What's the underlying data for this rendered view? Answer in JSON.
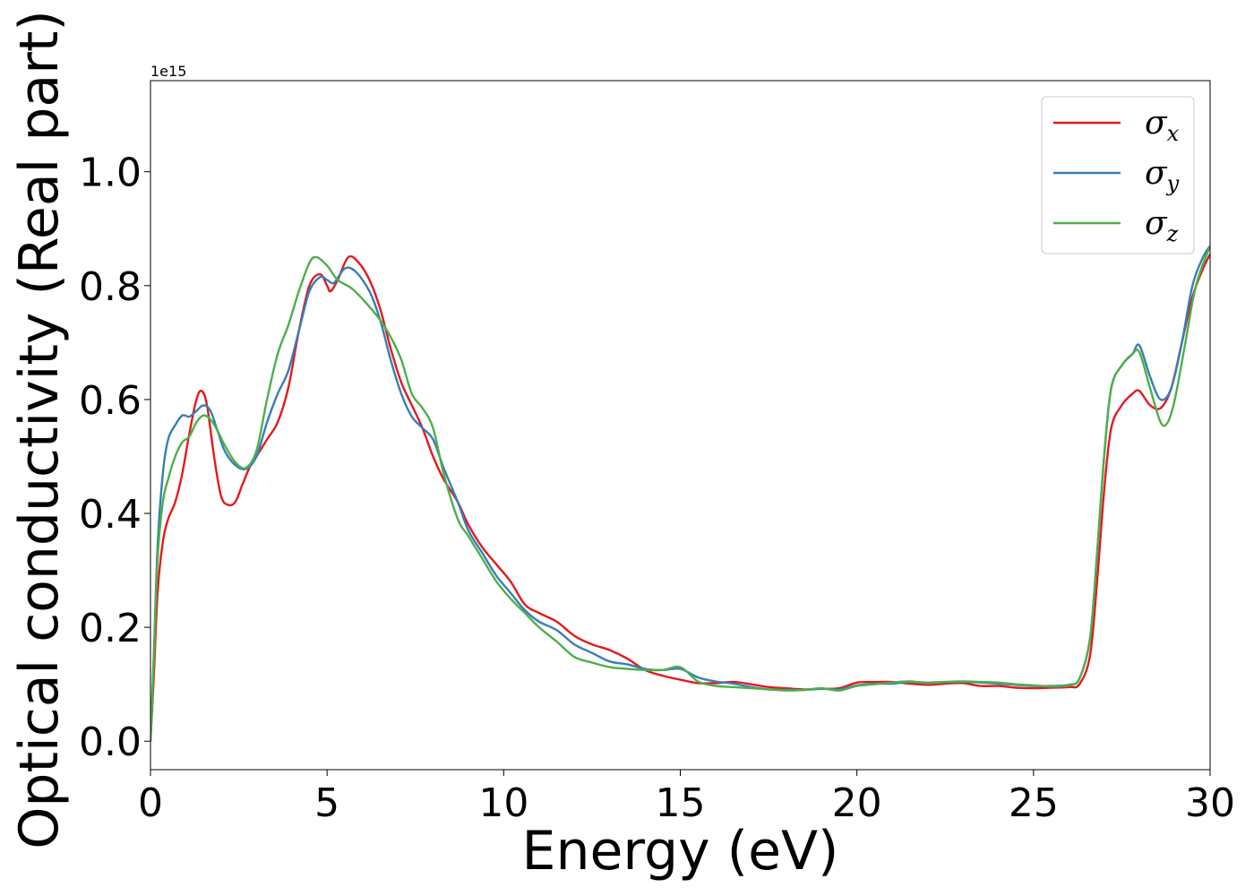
{
  "chart_data": {
    "type": "line",
    "title": "",
    "xlabel": "Energy (eV)",
    "ylabel": "Optical conductivity (Real part)",
    "y_offset_text": "1e15",
    "xlim": [
      0,
      30
    ],
    "ylim": [
      -0.05,
      1.16
    ],
    "y_scale_note": "values in units of 1e15",
    "xticks": [
      0,
      5,
      10,
      15,
      20,
      25,
      30
    ],
    "xtick_labels": [
      "0",
      "5",
      "10",
      "15",
      "20",
      "25",
      "30"
    ],
    "yticks": [
      0.0,
      0.2,
      0.4,
      0.6,
      0.8,
      1.0
    ],
    "ytick_labels": [
      "0.0",
      "0.2",
      "0.4",
      "0.6",
      "0.8",
      "1.0"
    ],
    "grid": false,
    "legend_position": "top-right",
    "series": [
      {
        "name": "σx",
        "legend_base": "σ",
        "legend_sub": "x",
        "color": "#e41a1c",
        "points": [
          [
            0,
            0.0
          ],
          [
            0.1,
            0.12
          ],
          [
            0.2,
            0.26
          ],
          [
            0.35,
            0.35
          ],
          [
            0.5,
            0.39
          ],
          [
            0.7,
            0.42
          ],
          [
            0.9,
            0.47
          ],
          [
            1.1,
            0.54
          ],
          [
            1.3,
            0.6
          ],
          [
            1.45,
            0.615
          ],
          [
            1.6,
            0.59
          ],
          [
            1.8,
            0.5
          ],
          [
            2.0,
            0.43
          ],
          [
            2.2,
            0.415
          ],
          [
            2.4,
            0.42
          ],
          [
            2.6,
            0.45
          ],
          [
            2.8,
            0.48
          ],
          [
            3.0,
            0.5
          ],
          [
            3.3,
            0.53
          ],
          [
            3.6,
            0.56
          ],
          [
            3.9,
            0.62
          ],
          [
            4.2,
            0.72
          ],
          [
            4.5,
            0.8
          ],
          [
            4.8,
            0.82
          ],
          [
            5.0,
            0.8
          ],
          [
            5.1,
            0.79
          ],
          [
            5.3,
            0.81
          ],
          [
            5.6,
            0.85
          ],
          [
            5.9,
            0.84
          ],
          [
            6.2,
            0.81
          ],
          [
            6.5,
            0.76
          ],
          [
            6.8,
            0.69
          ],
          [
            7.1,
            0.63
          ],
          [
            7.4,
            0.59
          ],
          [
            7.7,
            0.55
          ],
          [
            8.0,
            0.5
          ],
          [
            8.3,
            0.46
          ],
          [
            8.7,
            0.42
          ],
          [
            9.0,
            0.38
          ],
          [
            9.4,
            0.34
          ],
          [
            9.8,
            0.31
          ],
          [
            10.2,
            0.28
          ],
          [
            10.6,
            0.24
          ],
          [
            11.0,
            0.225
          ],
          [
            11.5,
            0.21
          ],
          [
            12.0,
            0.185
          ],
          [
            12.5,
            0.17
          ],
          [
            13.0,
            0.16
          ],
          [
            13.5,
            0.145
          ],
          [
            14.0,
            0.125
          ],
          [
            14.5,
            0.115
          ],
          [
            15.0,
            0.108
          ],
          [
            15.5,
            0.102
          ],
          [
            16.0,
            0.102
          ],
          [
            16.5,
            0.104
          ],
          [
            17.0,
            0.1
          ],
          [
            17.5,
            0.095
          ],
          [
            18.0,
            0.093
          ],
          [
            18.5,
            0.091
          ],
          [
            19.0,
            0.092
          ],
          [
            19.5,
            0.093
          ],
          [
            20.0,
            0.103
          ],
          [
            20.5,
            0.104
          ],
          [
            21.0,
            0.104
          ],
          [
            21.5,
            0.101
          ],
          [
            22.0,
            0.099
          ],
          [
            22.5,
            0.101
          ],
          [
            23.0,
            0.102
          ],
          [
            23.5,
            0.097
          ],
          [
            24.0,
            0.097
          ],
          [
            24.5,
            0.094
          ],
          [
            25.0,
            0.093
          ],
          [
            25.5,
            0.094
          ],
          [
            26.0,
            0.095
          ],
          [
            26.3,
            0.1
          ],
          [
            26.6,
            0.15
          ],
          [
            26.8,
            0.28
          ],
          [
            27.0,
            0.44
          ],
          [
            27.2,
            0.55
          ],
          [
            27.5,
            0.59
          ],
          [
            27.8,
            0.61
          ],
          [
            28.0,
            0.615
          ],
          [
            28.3,
            0.59
          ],
          [
            28.6,
            0.585
          ],
          [
            28.9,
            0.62
          ],
          [
            29.2,
            0.7
          ],
          [
            29.5,
            0.78
          ],
          [
            29.8,
            0.83
          ],
          [
            30.0,
            0.855
          ]
        ]
      },
      {
        "name": "σy",
        "legend_base": "σ",
        "legend_sub": "y",
        "color": "#377eb8",
        "points": [
          [
            0,
            0.0
          ],
          [
            0.1,
            0.16
          ],
          [
            0.2,
            0.34
          ],
          [
            0.35,
            0.47
          ],
          [
            0.5,
            0.53
          ],
          [
            0.7,
            0.555
          ],
          [
            0.9,
            0.572
          ],
          [
            1.1,
            0.57
          ],
          [
            1.3,
            0.58
          ],
          [
            1.5,
            0.59
          ],
          [
            1.7,
            0.58
          ],
          [
            1.9,
            0.545
          ],
          [
            2.1,
            0.51
          ],
          [
            2.4,
            0.485
          ],
          [
            2.7,
            0.478
          ],
          [
            3.0,
            0.5
          ],
          [
            3.3,
            0.56
          ],
          [
            3.6,
            0.61
          ],
          [
            3.9,
            0.65
          ],
          [
            4.2,
            0.72
          ],
          [
            4.5,
            0.79
          ],
          [
            4.8,
            0.815
          ],
          [
            5.0,
            0.81
          ],
          [
            5.2,
            0.805
          ],
          [
            5.5,
            0.83
          ],
          [
            5.8,
            0.825
          ],
          [
            6.2,
            0.79
          ],
          [
            6.5,
            0.74
          ],
          [
            6.8,
            0.67
          ],
          [
            7.1,
            0.61
          ],
          [
            7.4,
            0.57
          ],
          [
            7.7,
            0.55
          ],
          [
            8.0,
            0.53
          ],
          [
            8.3,
            0.48
          ],
          [
            8.7,
            0.42
          ],
          [
            9.0,
            0.37
          ],
          [
            9.4,
            0.33
          ],
          [
            9.8,
            0.29
          ],
          [
            10.2,
            0.26
          ],
          [
            10.6,
            0.23
          ],
          [
            11.0,
            0.21
          ],
          [
            11.5,
            0.195
          ],
          [
            12.0,
            0.17
          ],
          [
            12.5,
            0.155
          ],
          [
            13.0,
            0.14
          ],
          [
            13.5,
            0.135
          ],
          [
            14.0,
            0.127
          ],
          [
            14.5,
            0.125
          ],
          [
            15.0,
            0.127
          ],
          [
            15.5,
            0.112
          ],
          [
            16.0,
            0.105
          ],
          [
            16.5,
            0.101
          ],
          [
            17.0,
            0.095
          ],
          [
            17.5,
            0.091
          ],
          [
            18.0,
            0.09
          ],
          [
            18.5,
            0.09
          ],
          [
            19.0,
            0.092
          ],
          [
            19.5,
            0.091
          ],
          [
            20.0,
            0.098
          ],
          [
            20.5,
            0.101
          ],
          [
            21.0,
            0.101
          ],
          [
            21.5,
            0.104
          ],
          [
            22.0,
            0.103
          ],
          [
            22.5,
            0.104
          ],
          [
            23.0,
            0.104
          ],
          [
            23.5,
            0.103
          ],
          [
            24.0,
            0.101
          ],
          [
            24.5,
            0.099
          ],
          [
            25.0,
            0.097
          ],
          [
            25.5,
            0.097
          ],
          [
            26.0,
            0.099
          ],
          [
            26.3,
            0.11
          ],
          [
            26.6,
            0.18
          ],
          [
            26.8,
            0.33
          ],
          [
            27.0,
            0.5
          ],
          [
            27.2,
            0.62
          ],
          [
            27.5,
            0.66
          ],
          [
            27.8,
            0.68
          ],
          [
            28.0,
            0.695
          ],
          [
            28.3,
            0.64
          ],
          [
            28.6,
            0.6
          ],
          [
            28.9,
            0.62
          ],
          [
            29.2,
            0.7
          ],
          [
            29.5,
            0.8
          ],
          [
            29.8,
            0.85
          ],
          [
            30.0,
            0.87
          ]
        ]
      },
      {
        "name": "σz",
        "legend_base": "σ",
        "legend_sub": "z",
        "color": "#4daf4a",
        "points": [
          [
            0,
            0.0
          ],
          [
            0.1,
            0.15
          ],
          [
            0.2,
            0.32
          ],
          [
            0.35,
            0.42
          ],
          [
            0.5,
            0.46
          ],
          [
            0.7,
            0.5
          ],
          [
            0.9,
            0.525
          ],
          [
            1.1,
            0.535
          ],
          [
            1.3,
            0.56
          ],
          [
            1.5,
            0.572
          ],
          [
            1.7,
            0.565
          ],
          [
            1.9,
            0.545
          ],
          [
            2.1,
            0.52
          ],
          [
            2.4,
            0.49
          ],
          [
            2.7,
            0.48
          ],
          [
            3.0,
            0.51
          ],
          [
            3.3,
            0.6
          ],
          [
            3.6,
            0.68
          ],
          [
            3.9,
            0.73
          ],
          [
            4.2,
            0.79
          ],
          [
            4.5,
            0.84
          ],
          [
            4.7,
            0.85
          ],
          [
            5.0,
            0.835
          ],
          [
            5.3,
            0.81
          ],
          [
            5.7,
            0.795
          ],
          [
            6.1,
            0.77
          ],
          [
            6.5,
            0.74
          ],
          [
            6.8,
            0.71
          ],
          [
            7.1,
            0.67
          ],
          [
            7.4,
            0.61
          ],
          [
            7.7,
            0.585
          ],
          [
            8.0,
            0.55
          ],
          [
            8.3,
            0.47
          ],
          [
            8.7,
            0.39
          ],
          [
            9.0,
            0.36
          ],
          [
            9.4,
            0.32
          ],
          [
            9.8,
            0.28
          ],
          [
            10.2,
            0.25
          ],
          [
            10.6,
            0.225
          ],
          [
            11.0,
            0.2
          ],
          [
            11.5,
            0.175
          ],
          [
            12.0,
            0.148
          ],
          [
            12.5,
            0.138
          ],
          [
            13.0,
            0.13
          ],
          [
            13.5,
            0.127
          ],
          [
            14.0,
            0.125
          ],
          [
            14.5,
            0.125
          ],
          [
            15.0,
            0.13
          ],
          [
            15.5,
            0.105
          ],
          [
            16.0,
            0.097
          ],
          [
            16.5,
            0.095
          ],
          [
            17.0,
            0.093
          ],
          [
            17.5,
            0.091
          ],
          [
            18.0,
            0.089
          ],
          [
            18.5,
            0.09
          ],
          [
            19.0,
            0.093
          ],
          [
            19.5,
            0.089
          ],
          [
            20.0,
            0.097
          ],
          [
            20.5,
            0.1
          ],
          [
            21.0,
            0.103
          ],
          [
            21.5,
            0.105
          ],
          [
            22.0,
            0.102
          ],
          [
            22.5,
            0.104
          ],
          [
            23.0,
            0.105
          ],
          [
            23.5,
            0.104
          ],
          [
            24.0,
            0.103
          ],
          [
            24.5,
            0.1
          ],
          [
            25.0,
            0.098
          ],
          [
            25.5,
            0.096
          ],
          [
            26.0,
            0.098
          ],
          [
            26.3,
            0.11
          ],
          [
            26.6,
            0.18
          ],
          [
            26.8,
            0.33
          ],
          [
            27.0,
            0.5
          ],
          [
            27.2,
            0.62
          ],
          [
            27.5,
            0.66
          ],
          [
            27.8,
            0.68
          ],
          [
            28.0,
            0.683
          ],
          [
            28.3,
            0.62
          ],
          [
            28.6,
            0.56
          ],
          [
            28.8,
            0.56
          ],
          [
            29.0,
            0.6
          ],
          [
            29.3,
            0.7
          ],
          [
            29.6,
            0.8
          ],
          [
            30.0,
            0.87
          ]
        ]
      }
    ]
  }
}
